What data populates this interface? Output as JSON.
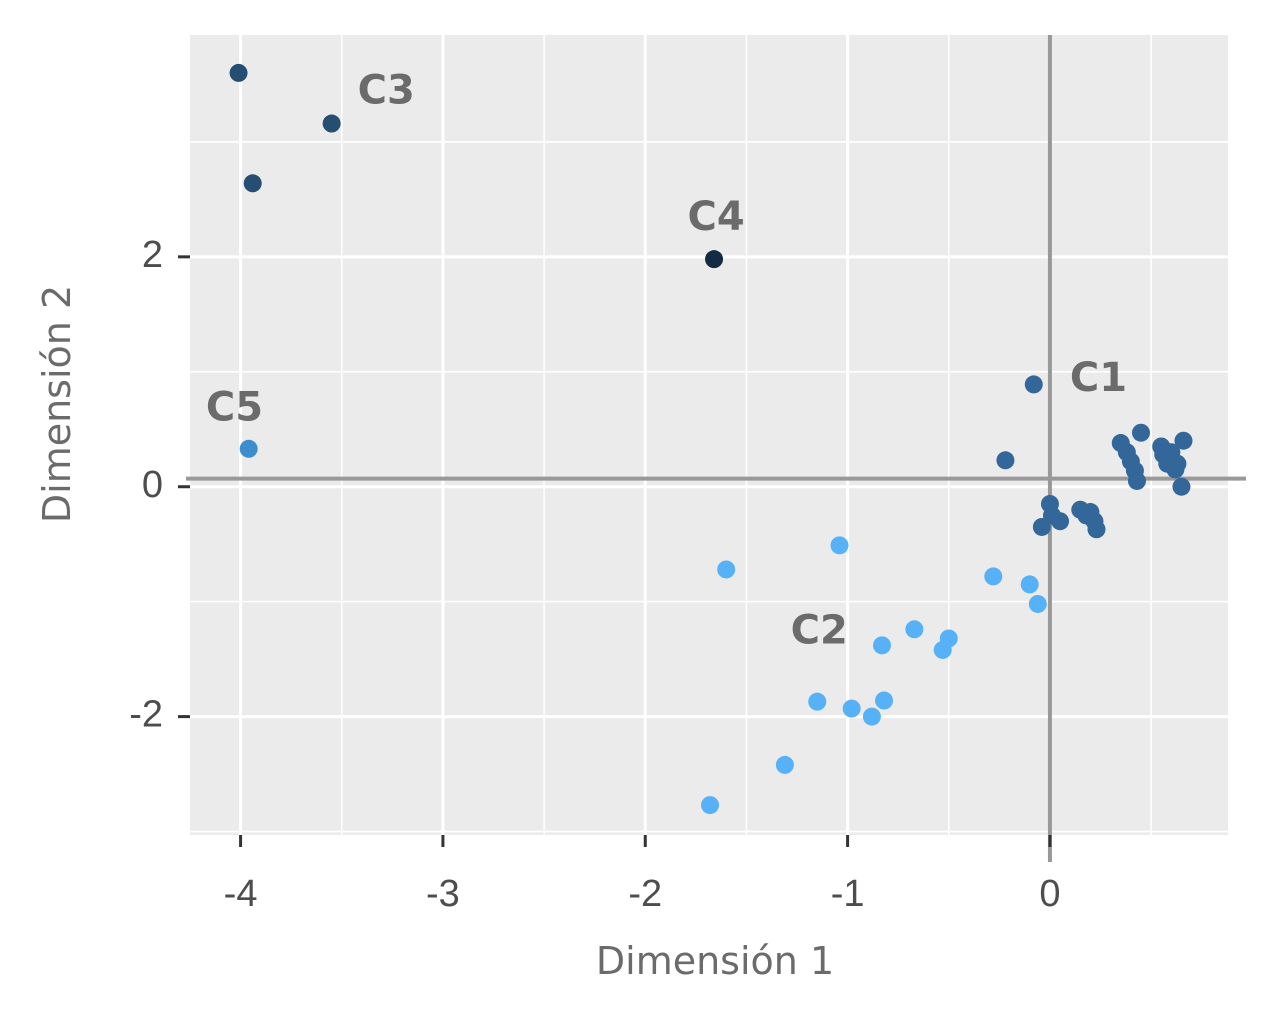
{
  "chart_data": {
    "type": "scatter",
    "xlabel": "Dimensión 1",
    "ylabel": "Dimensión 2",
    "xlim": [
      -4.25,
      0.88
    ],
    "ylim": [
      -3.03,
      3.93
    ],
    "xticks": [
      -4,
      -3,
      -2,
      -1,
      0
    ],
    "yticks": [
      -2,
      0,
      2
    ],
    "x_tick_labels": [
      "-4",
      "-3",
      "-2",
      "-1",
      "0"
    ],
    "y_tick_labels": [
      "-2",
      "0",
      "2"
    ],
    "grid": true,
    "reference_lines": {
      "x": 0,
      "y": 0.07
    },
    "colors": {
      "panel": "#ebebeb",
      "grid": "#ffffff",
      "reference": "#999999",
      "C1": "#336699",
      "C2": "#56b1f7",
      "C3": "#264e73",
      "C4": "#132b43",
      "C5": "#3d8ecc"
    },
    "series": [
      {
        "name": "C1",
        "label_pos": [
          0.24,
          0.93
        ],
        "x": [
          -0.08,
          -0.22,
          0.35,
          0.38,
          0.4,
          0.42,
          0.43,
          0.45,
          0.55,
          0.56,
          0.58,
          0.6,
          0.62,
          0.63,
          0.65,
          0.66,
          0.0,
          0.01,
          -0.04,
          0.05,
          0.15,
          0.18,
          0.2,
          0.22,
          0.23
        ],
        "y": [
          0.89,
          0.23,
          0.38,
          0.3,
          0.22,
          0.14,
          0.05,
          0.47,
          0.35,
          0.28,
          0.2,
          0.3,
          0.15,
          0.2,
          0.0,
          0.4,
          -0.15,
          -0.25,
          -0.35,
          -0.3,
          -0.2,
          -0.25,
          -0.22,
          -0.3,
          -0.37
        ]
      },
      {
        "name": "C2",
        "label_pos": [
          -1.14,
          -1.27
        ],
        "x": [
          -1.6,
          -1.04,
          -0.28,
          -0.1,
          -0.06,
          -0.67,
          -0.83,
          -0.53,
          -0.5,
          -1.15,
          -0.98,
          -0.88,
          -0.82,
          -1.31,
          -1.68
        ],
        "y": [
          -0.72,
          -0.51,
          -0.78,
          -0.85,
          -1.02,
          -1.24,
          -1.38,
          -1.42,
          -1.32,
          -1.87,
          -1.93,
          -2.0,
          -1.86,
          -2.42,
          -2.77
        ]
      },
      {
        "name": "C3",
        "label_pos": [
          -3.28,
          3.43
        ],
        "x": [
          -4.01,
          -3.55,
          -3.94
        ],
        "y": [
          3.6,
          3.16,
          2.64
        ]
      },
      {
        "name": "C4",
        "label_pos": [
          -1.65,
          2.33
        ],
        "x": [
          -1.66
        ],
        "y": [
          1.98
        ]
      },
      {
        "name": "C5",
        "label_pos": [
          -4.03,
          0.67
        ],
        "x": [
          -3.96
        ],
        "y": [
          0.33
        ]
      }
    ]
  }
}
